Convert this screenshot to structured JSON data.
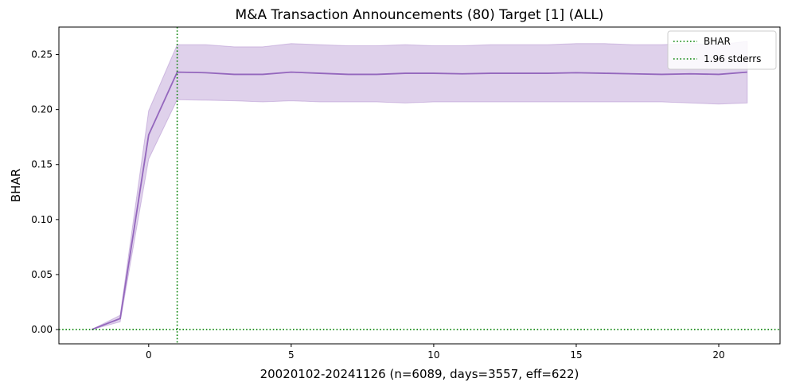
{
  "chart_data": {
    "type": "line",
    "title": "M&A Transaction Announcements (80) Target [1] (ALL)",
    "xlabel": "20020102-20241126 (n=6089, days=3557, eff=622)",
    "ylabel": "BHAR",
    "xlim": [
      -3.15,
      22.15
    ],
    "ylim": [
      -0.013,
      0.275
    ],
    "xticks": [
      0,
      5,
      10,
      15,
      20
    ],
    "yticks": [
      0.0,
      0.05,
      0.1,
      0.15,
      0.2,
      0.25
    ],
    "xtick_labels": [
      "0",
      "5",
      "10",
      "15",
      "20"
    ],
    "ytick_labels": [
      "0.00",
      "0.05",
      "0.10",
      "0.15",
      "0.20",
      "0.25"
    ],
    "grid": false,
    "legend_position": "top-right",
    "colors": {
      "series": "#9467bd",
      "reference": "#008000"
    },
    "x": [
      -2,
      -1,
      0,
      1,
      2,
      3,
      4,
      5,
      6,
      7,
      8,
      9,
      10,
      11,
      12,
      13,
      14,
      15,
      16,
      17,
      18,
      19,
      20,
      21
    ],
    "series": [
      {
        "values": [
          0.0,
          0.01,
          0.177,
          0.234,
          0.2335,
          0.232,
          0.232,
          0.234,
          0.233,
          0.232,
          0.232,
          0.233,
          0.233,
          0.2325,
          0.233,
          0.233,
          0.233,
          0.2335,
          0.233,
          0.2325,
          0.232,
          0.2325,
          0.232,
          0.234
        ],
        "lower": [
          0.0,
          0.007,
          0.155,
          0.209,
          0.2085,
          0.208,
          0.207,
          0.208,
          0.207,
          0.207,
          0.207,
          0.206,
          0.207,
          0.207,
          0.207,
          0.207,
          0.207,
          0.207,
          0.207,
          0.207,
          0.207,
          0.206,
          0.205,
          0.206
        ],
        "upper": [
          0.0,
          0.013,
          0.199,
          0.259,
          0.259,
          0.257,
          0.257,
          0.26,
          0.259,
          0.258,
          0.258,
          0.259,
          0.258,
          0.258,
          0.259,
          0.259,
          0.259,
          0.26,
          0.26,
          0.259,
          0.259,
          0.26,
          0.259,
          0.262
        ]
      }
    ],
    "reference_lines": [
      {
        "orientation": "vertical",
        "x": 1
      },
      {
        "orientation": "horizontal",
        "y": 0
      }
    ],
    "legend": [
      "BHAR",
      "1.96 stderrs"
    ]
  }
}
